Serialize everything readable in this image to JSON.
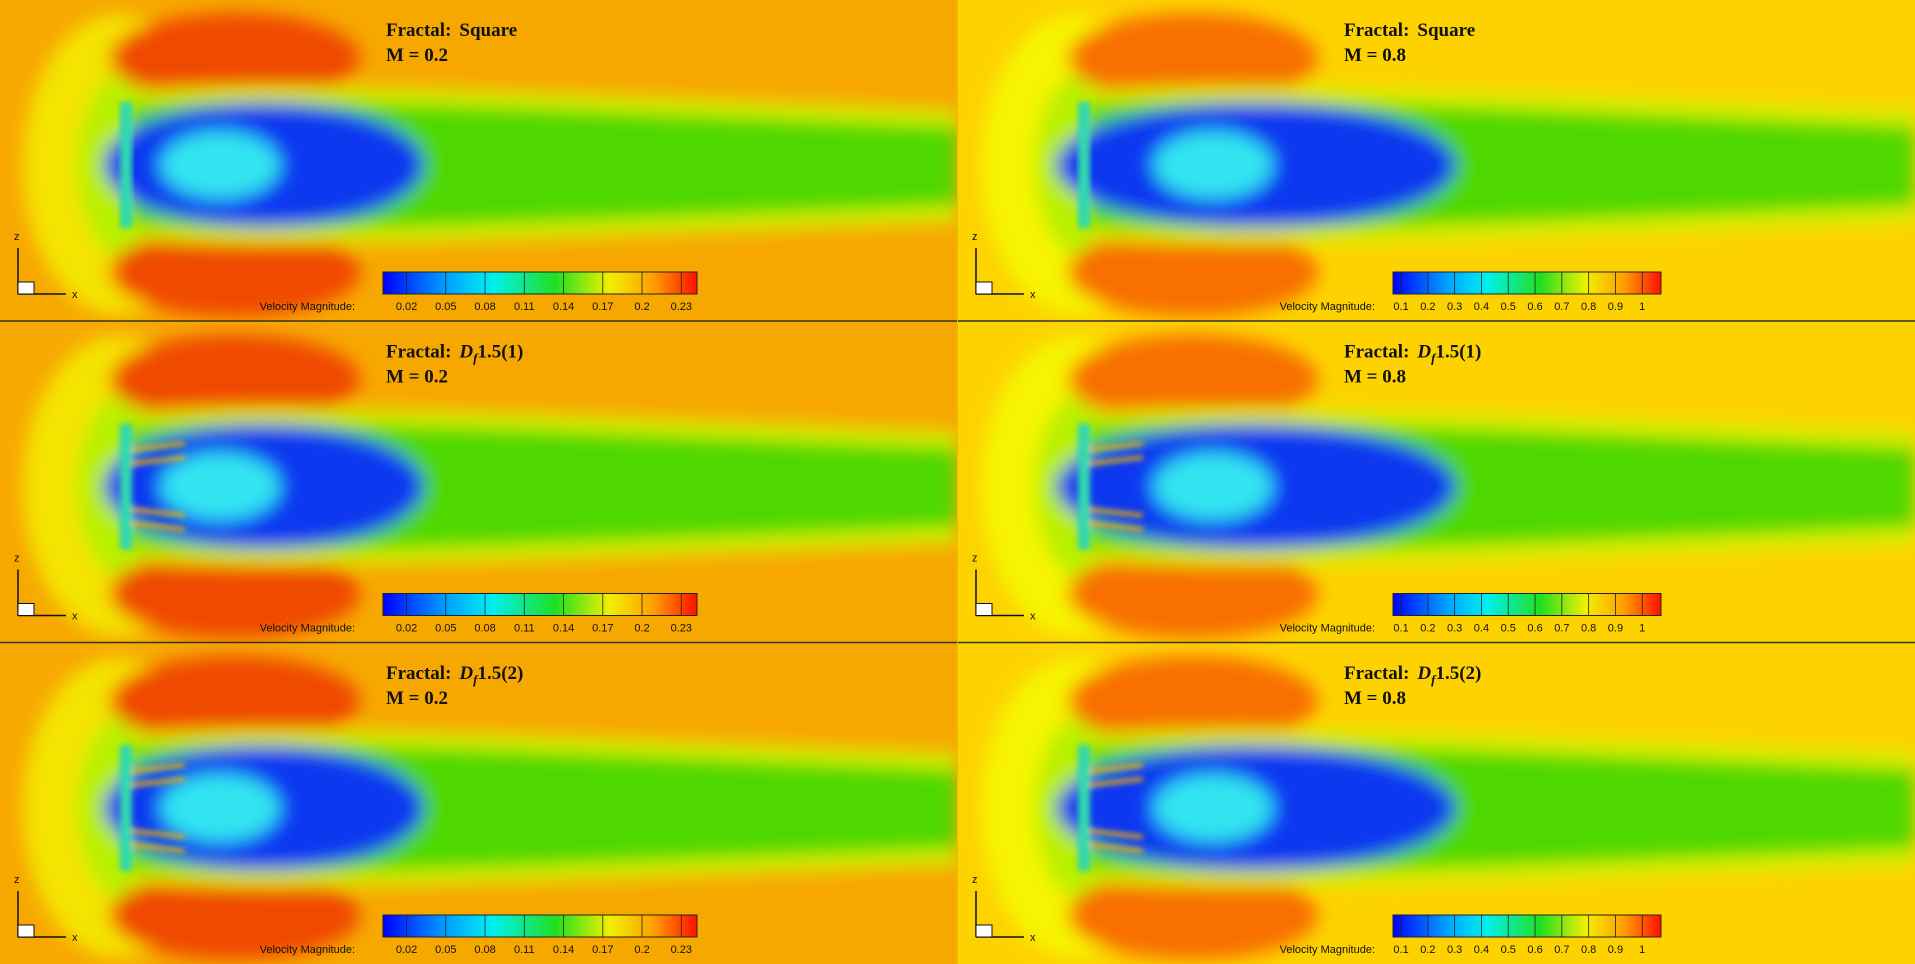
{
  "panels": [
    {
      "title": {
        "label": "Fractal:",
        "value": "Square"
      },
      "mach": "M = 0.2",
      "colorbar": {
        "label": "Velocity Magnitude:",
        "ticks": [
          0.02,
          0.05,
          0.08,
          0.11,
          0.14,
          0.17,
          0.2,
          0.23
        ]
      },
      "axis_labels": {
        "z": "z",
        "x": "x"
      }
    },
    {
      "title": {
        "label": "Fractal:",
        "value": "Square"
      },
      "mach": "M = 0.8",
      "colorbar": {
        "label": "Velocity Magnitude:",
        "ticks": [
          0.1,
          0.2,
          0.3,
          0.4,
          0.5,
          0.6,
          0.7,
          0.8,
          0.9,
          1
        ]
      },
      "axis_labels": {
        "z": "z",
        "x": "x"
      }
    },
    {
      "title": {
        "label": "Fractal:",
        "symbol": "D",
        "subscript": "f",
        "value": "1.5(1)"
      },
      "mach": "M = 0.2",
      "colorbar": {
        "label": "Velocity Magnitude:",
        "ticks": [
          0.02,
          0.05,
          0.08,
          0.11,
          0.14,
          0.17,
          0.2,
          0.23
        ]
      },
      "axis_labels": {
        "z": "z",
        "x": "x"
      }
    },
    {
      "title": {
        "label": "Fractal:",
        "symbol": "D",
        "subscript": "f",
        "value": "1.5(1)"
      },
      "mach": "M = 0.8",
      "colorbar": {
        "label": "Velocity Magnitude:",
        "ticks": [
          0.1,
          0.2,
          0.3,
          0.4,
          0.5,
          0.6,
          0.7,
          0.8,
          0.9,
          1
        ]
      },
      "axis_labels": {
        "z": "z",
        "x": "x"
      }
    },
    {
      "title": {
        "label": "Fractal:",
        "symbol": "D",
        "subscript": "f",
        "value": "1.5(2)"
      },
      "mach": "M = 0.2",
      "colorbar": {
        "label": "Velocity Magnitude:",
        "ticks": [
          0.02,
          0.05,
          0.08,
          0.11,
          0.14,
          0.17,
          0.2,
          0.23
        ]
      },
      "axis_labels": {
        "z": "z",
        "x": "x"
      }
    },
    {
      "title": {
        "label": "Fractal:",
        "symbol": "D",
        "subscript": "f",
        "value": "1.5(2)"
      },
      "mach": "M = 0.8",
      "colorbar": {
        "label": "Velocity Magnitude:",
        "ticks": [
          0.1,
          0.2,
          0.3,
          0.4,
          0.5,
          0.6,
          0.7,
          0.8,
          0.9,
          1
        ]
      },
      "axis_labels": {
        "z": "z",
        "x": "x"
      }
    }
  ]
}
